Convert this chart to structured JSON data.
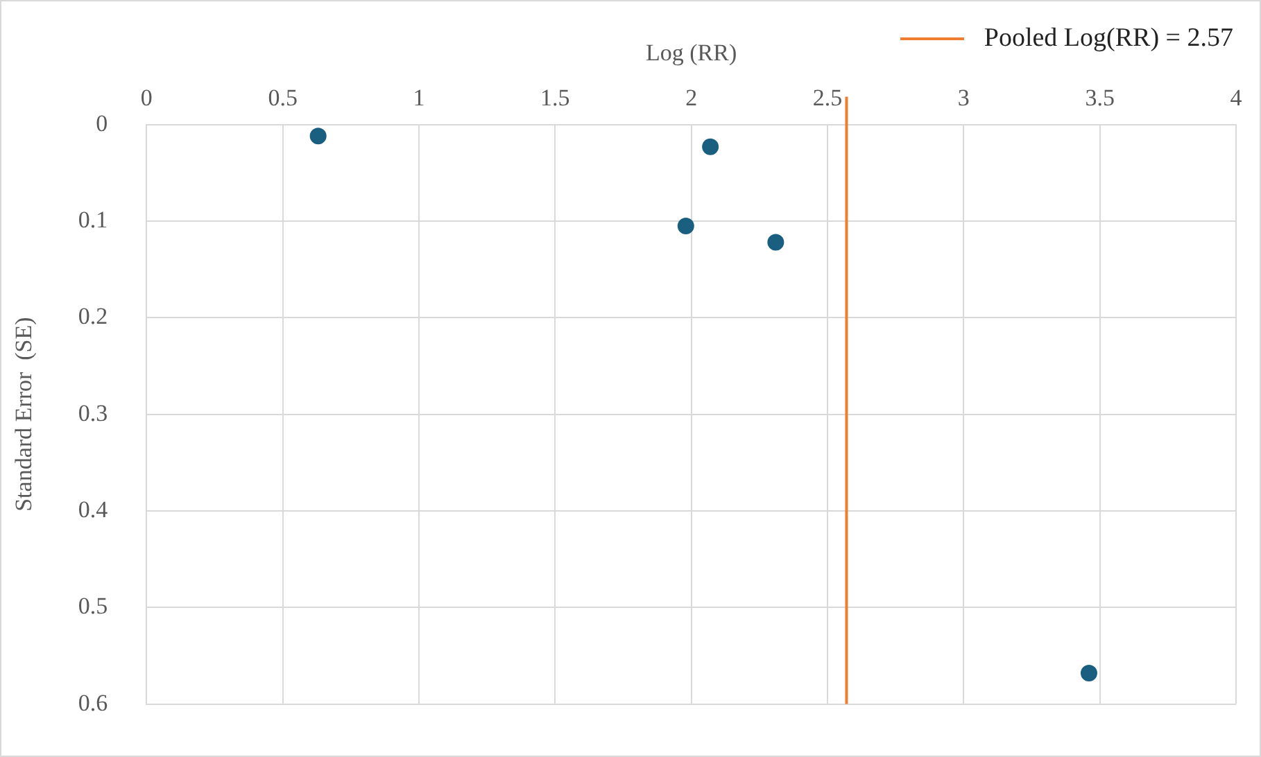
{
  "chart_data": {
    "type": "scatter",
    "xlabel": "Log (RR)",
    "ylabel": "Standard Error  (SE)",
    "x": [
      0.63,
      2.07,
      1.98,
      2.31,
      3.46
    ],
    "series": [
      {
        "color": "#1a5e80",
        "values": [
          0.012,
          0.023,
          0.105,
          0.122,
          0.568
        ]
      }
    ],
    "xlim": [
      0,
      4
    ],
    "xticks": [
      0,
      0.5,
      1,
      1.5,
      2,
      2.5,
      3,
      3.5,
      4
    ],
    "ylim": [
      0.6,
      0
    ],
    "yticks": [
      0,
      0.1,
      0.2,
      0.3,
      0.4,
      0.5,
      0.6
    ],
    "ref_lines": [
      {
        "axis": "x",
        "value": 2.57,
        "label": "Pooled Log(RR) = 2.57",
        "color": "#ed7d31"
      }
    ],
    "grid": true,
    "legend": "top right",
    "marker": "circle"
  }
}
